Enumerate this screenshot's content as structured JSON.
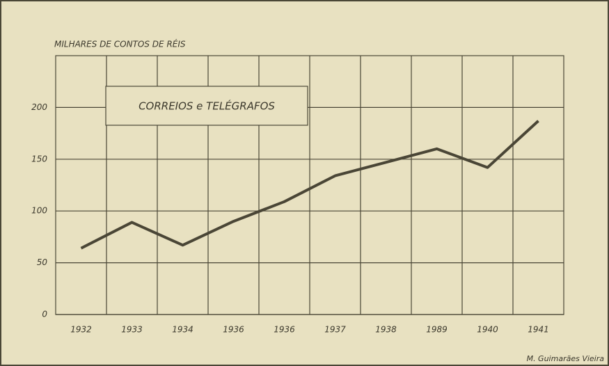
{
  "chart_data": {
    "type": "line",
    "y_label": "MILHARES DE CONTOS DE RÉIS",
    "legend_title": "CORREIOS e TELÉGRAFOS",
    "credit": "M. Guimarães Vieira",
    "categories": [
      "1932",
      "1933",
      "1934",
      "1936",
      "1936",
      "1937",
      "1938",
      "1989",
      "1940",
      "1941"
    ],
    "series": [
      {
        "name": "CORREIOS e TELÉGRAFOS",
        "color": "#4a4636",
        "values": [
          64,
          89,
          67,
          90,
          109,
          134,
          147,
          160,
          142,
          187
        ]
      }
    ],
    "ylim": [
      0,
      250
    ],
    "yticks": [
      0,
      50,
      100,
      150,
      200
    ],
    "grid": true
  }
}
